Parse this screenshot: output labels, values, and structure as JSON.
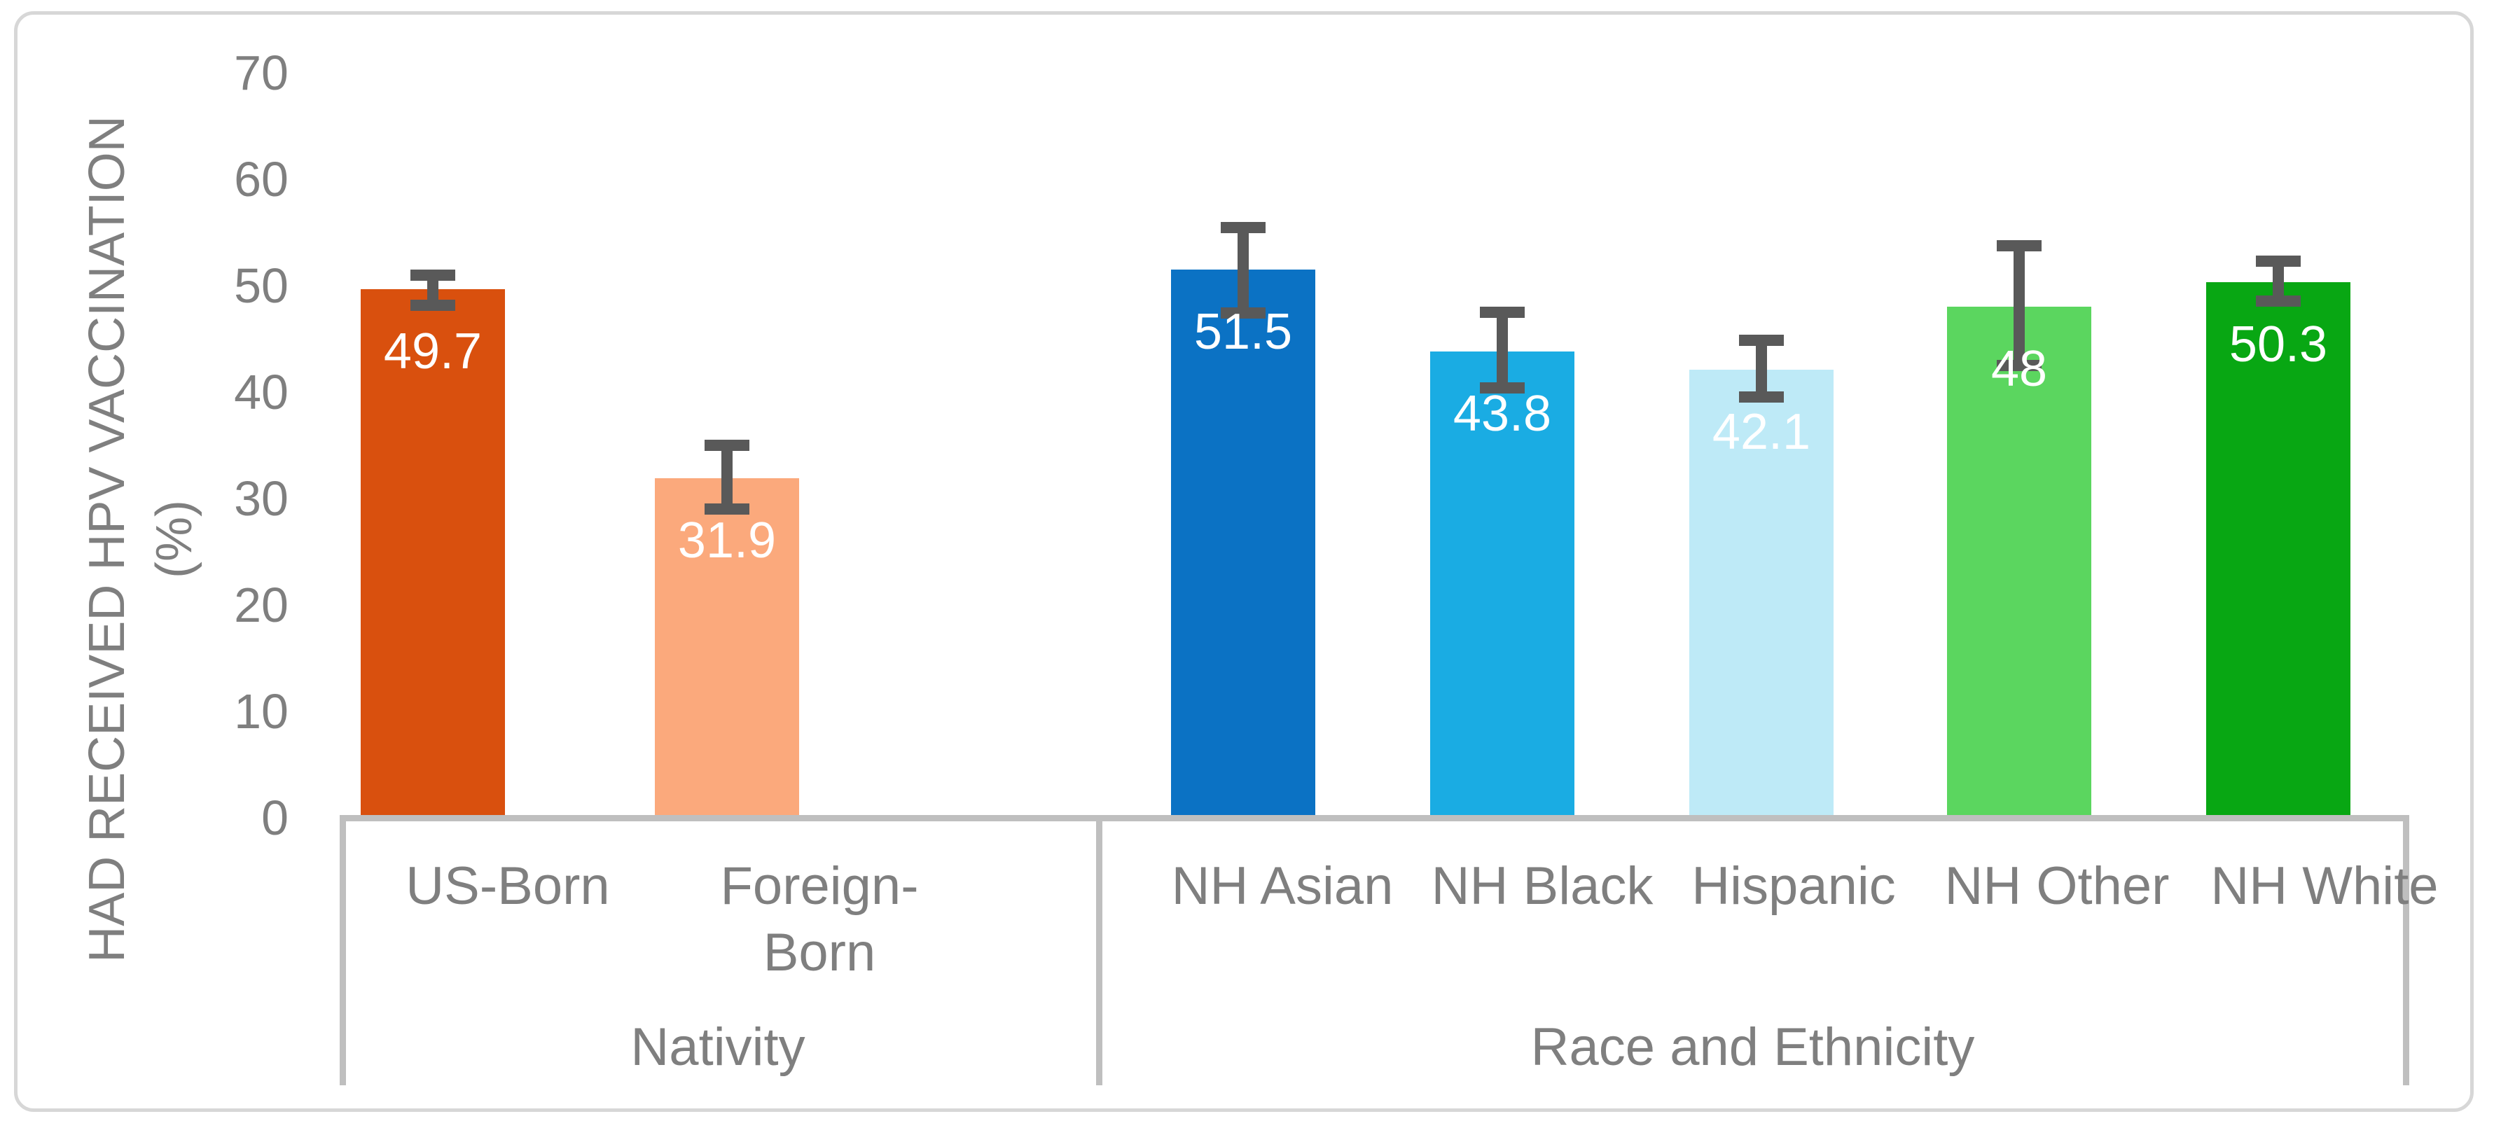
{
  "colors": {
    "frame_border": "#D7D7D7",
    "axis_line": "#BFBFBF",
    "text_gray": "#7F7F7F",
    "error_bar": "#595959",
    "data_label_text": "#FFFFFF"
  },
  "chart_data": {
    "type": "bar",
    "title": "",
    "ylabel_line1": "HAD RECEIVED HPV VACCINATION",
    "ylabel_line2": "(%)",
    "ylim": [
      0,
      70
    ],
    "yticks": [
      0,
      10,
      20,
      30,
      40,
      50,
      60,
      70
    ],
    "grid": false,
    "legend": false,
    "error_bars": true,
    "groups": [
      {
        "label": "Nativity",
        "categories": [
          "US-Born",
          "Foreign-Born"
        ]
      },
      {
        "label": "Race and Ethnicity",
        "categories": [
          "NH Asian",
          "NH Black",
          "Hispanic",
          "NH Other",
          "NH White"
        ]
      }
    ],
    "points": [
      {
        "category": "US-Born",
        "group": "Nativity",
        "value": 49.7,
        "label": "49.7",
        "color": "#D9500E",
        "error_low": 47.6,
        "error_high": 51.5
      },
      {
        "category": "Foreign-Born",
        "group": "Nativity",
        "value": 31.9,
        "label": "31.9",
        "color": "#FBA97C",
        "error_low": 28.5,
        "error_high": 35.5
      },
      {
        "category": "NH Asian",
        "group": "Race and Ethnicity",
        "value": 51.5,
        "label": "51.5",
        "color": "#0B72C4",
        "error_low": 46.9,
        "error_high": 56.0
      },
      {
        "category": "NH Black",
        "group": "Race and Ethnicity",
        "value": 43.8,
        "label": "43.8",
        "color": "#1AACE3",
        "error_low": 39.9,
        "error_high": 48.0
      },
      {
        "category": "Hispanic",
        "group": "Race and Ethnicity",
        "value": 42.1,
        "label": "42.1",
        "color": "#BEEAF7",
        "error_low": 39.0,
        "error_high": 45.4
      },
      {
        "category": "NH Other",
        "group": "Race and Ethnicity",
        "value": 48.0,
        "label": "48",
        "color": "#5BD65F",
        "error_low": 42.0,
        "error_high": 54.3
      },
      {
        "category": "NH White",
        "group": "Race and Ethnicity",
        "value": 50.3,
        "label": "50.3",
        "color": "#08A713",
        "error_low": 48.0,
        "error_high": 52.8
      }
    ]
  }
}
